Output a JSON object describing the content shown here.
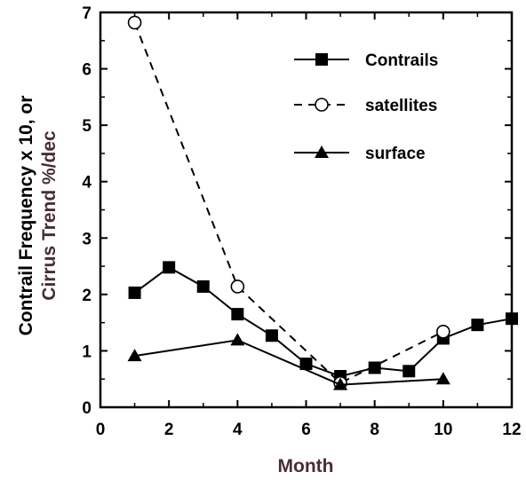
{
  "chart_data": {
    "type": "line",
    "xlabel": "Month",
    "ylabel_line1": "Contrail Frequency x 10, or",
    "ylabel_line2": "Cirrus Trend %/dec",
    "xlim": [
      0,
      12
    ],
    "ylim": [
      0,
      7
    ],
    "xticks": [
      "0",
      "2",
      "4",
      "6",
      "8",
      "10",
      "12"
    ],
    "yticks": [
      "0",
      "1",
      "2",
      "3",
      "4",
      "5",
      "6",
      "7"
    ],
    "grid": false,
    "legend_position": "top-right",
    "series": [
      {
        "name": "Contrails",
        "marker": "filled-square",
        "line": "solid",
        "x": [
          1,
          2,
          3,
          4,
          5,
          6,
          7,
          8,
          9,
          10,
          11,
          12
        ],
        "y": [
          2.03,
          2.48,
          2.14,
          1.65,
          1.27,
          0.77,
          0.55,
          0.7,
          0.64,
          1.22,
          1.46,
          1.57
        ]
      },
      {
        "name": "satellites",
        "marker": "open-circle",
        "line": "dashed",
        "x": [
          1,
          4,
          7,
          10
        ],
        "y": [
          6.82,
          2.14,
          0.43,
          1.34
        ]
      },
      {
        "name": "surface",
        "marker": "filled-triangle",
        "line": "solid",
        "x": [
          1,
          4,
          7,
          10
        ],
        "y": [
          0.91,
          1.19,
          0.4,
          0.5
        ]
      }
    ],
    "colors": {
      "axis": "#000000",
      "ylabel_line2": "#4a2c38"
    }
  }
}
